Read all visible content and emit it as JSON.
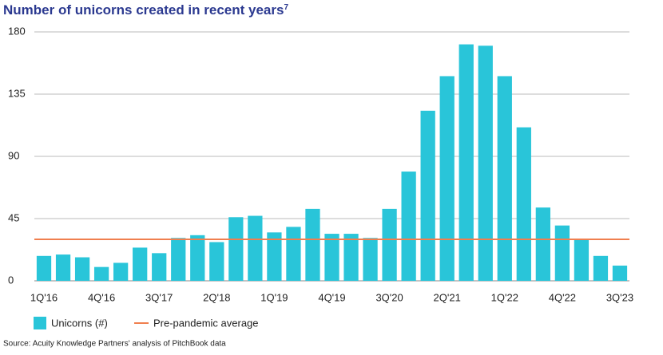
{
  "chart_data": {
    "type": "bar",
    "title": "Number of unicorns created in recent years",
    "title_superscript": "7",
    "categories": [
      "1Q'16",
      null,
      null,
      "4Q'16",
      null,
      null,
      "3Q'17",
      null,
      null,
      "2Q'18",
      null,
      null,
      "1Q'19",
      null,
      null,
      "4Q'19",
      null,
      null,
      "3Q'20",
      null,
      null,
      "2Q'21",
      null,
      null,
      "1Q'22",
      null,
      null,
      "4Q'22",
      null,
      null,
      "3Q'23"
    ],
    "series": [
      {
        "name": "Unicorns (#)",
        "color": "#29c5d9",
        "values": [
          18,
          19,
          17,
          10,
          13,
          24,
          20,
          31,
          33,
          28,
          46,
          47,
          35,
          39,
          52,
          34,
          34,
          31,
          52,
          79,
          123,
          148,
          171,
          170,
          148,
          111,
          53,
          40,
          30,
          18,
          11
        ]
      }
    ],
    "reference_line": {
      "name": "Pre-pandemic average",
      "value": 30,
      "color": "#f07f4f"
    },
    "ylim": [
      0,
      180
    ],
    "yticks": [
      0,
      45,
      90,
      135,
      180
    ],
    "grid": true,
    "source": "Source: Acuity Knowledge Partners' analysis of PitchBook data"
  }
}
